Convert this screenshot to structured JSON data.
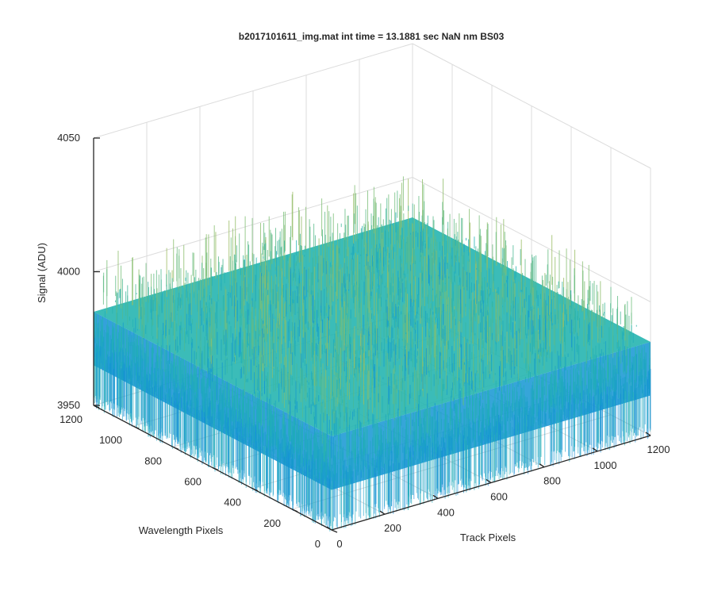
{
  "chart_data": {
    "type": "surface3d",
    "title": "b2017101611_img.mat int time = 13.1881 sec  NaN nm BS03",
    "xlabel": "Track Pixels",
    "ylabel": "Wavelength Pixels",
    "zlabel": "Signal (ADU)",
    "xlim": [
      0,
      1200
    ],
    "ylim": [
      0,
      1200
    ],
    "zlim": [
      3950,
      4050
    ],
    "xticks": [
      "0",
      "200",
      "400",
      "600",
      "800",
      "1000",
      "1200"
    ],
    "yticks": [
      "0",
      "200",
      "400",
      "600",
      "800",
      "1000",
      "1200"
    ],
    "zticks": [
      "3950",
      "4000",
      "4050"
    ],
    "grid": true,
    "surface": {
      "x_extent": [
        0,
        1200
      ],
      "y_extent": [
        0,
        1200
      ],
      "z_mean": 3985,
      "z_noise_range": [
        3955,
        4020
      ],
      "colormap": "parula"
    }
  }
}
